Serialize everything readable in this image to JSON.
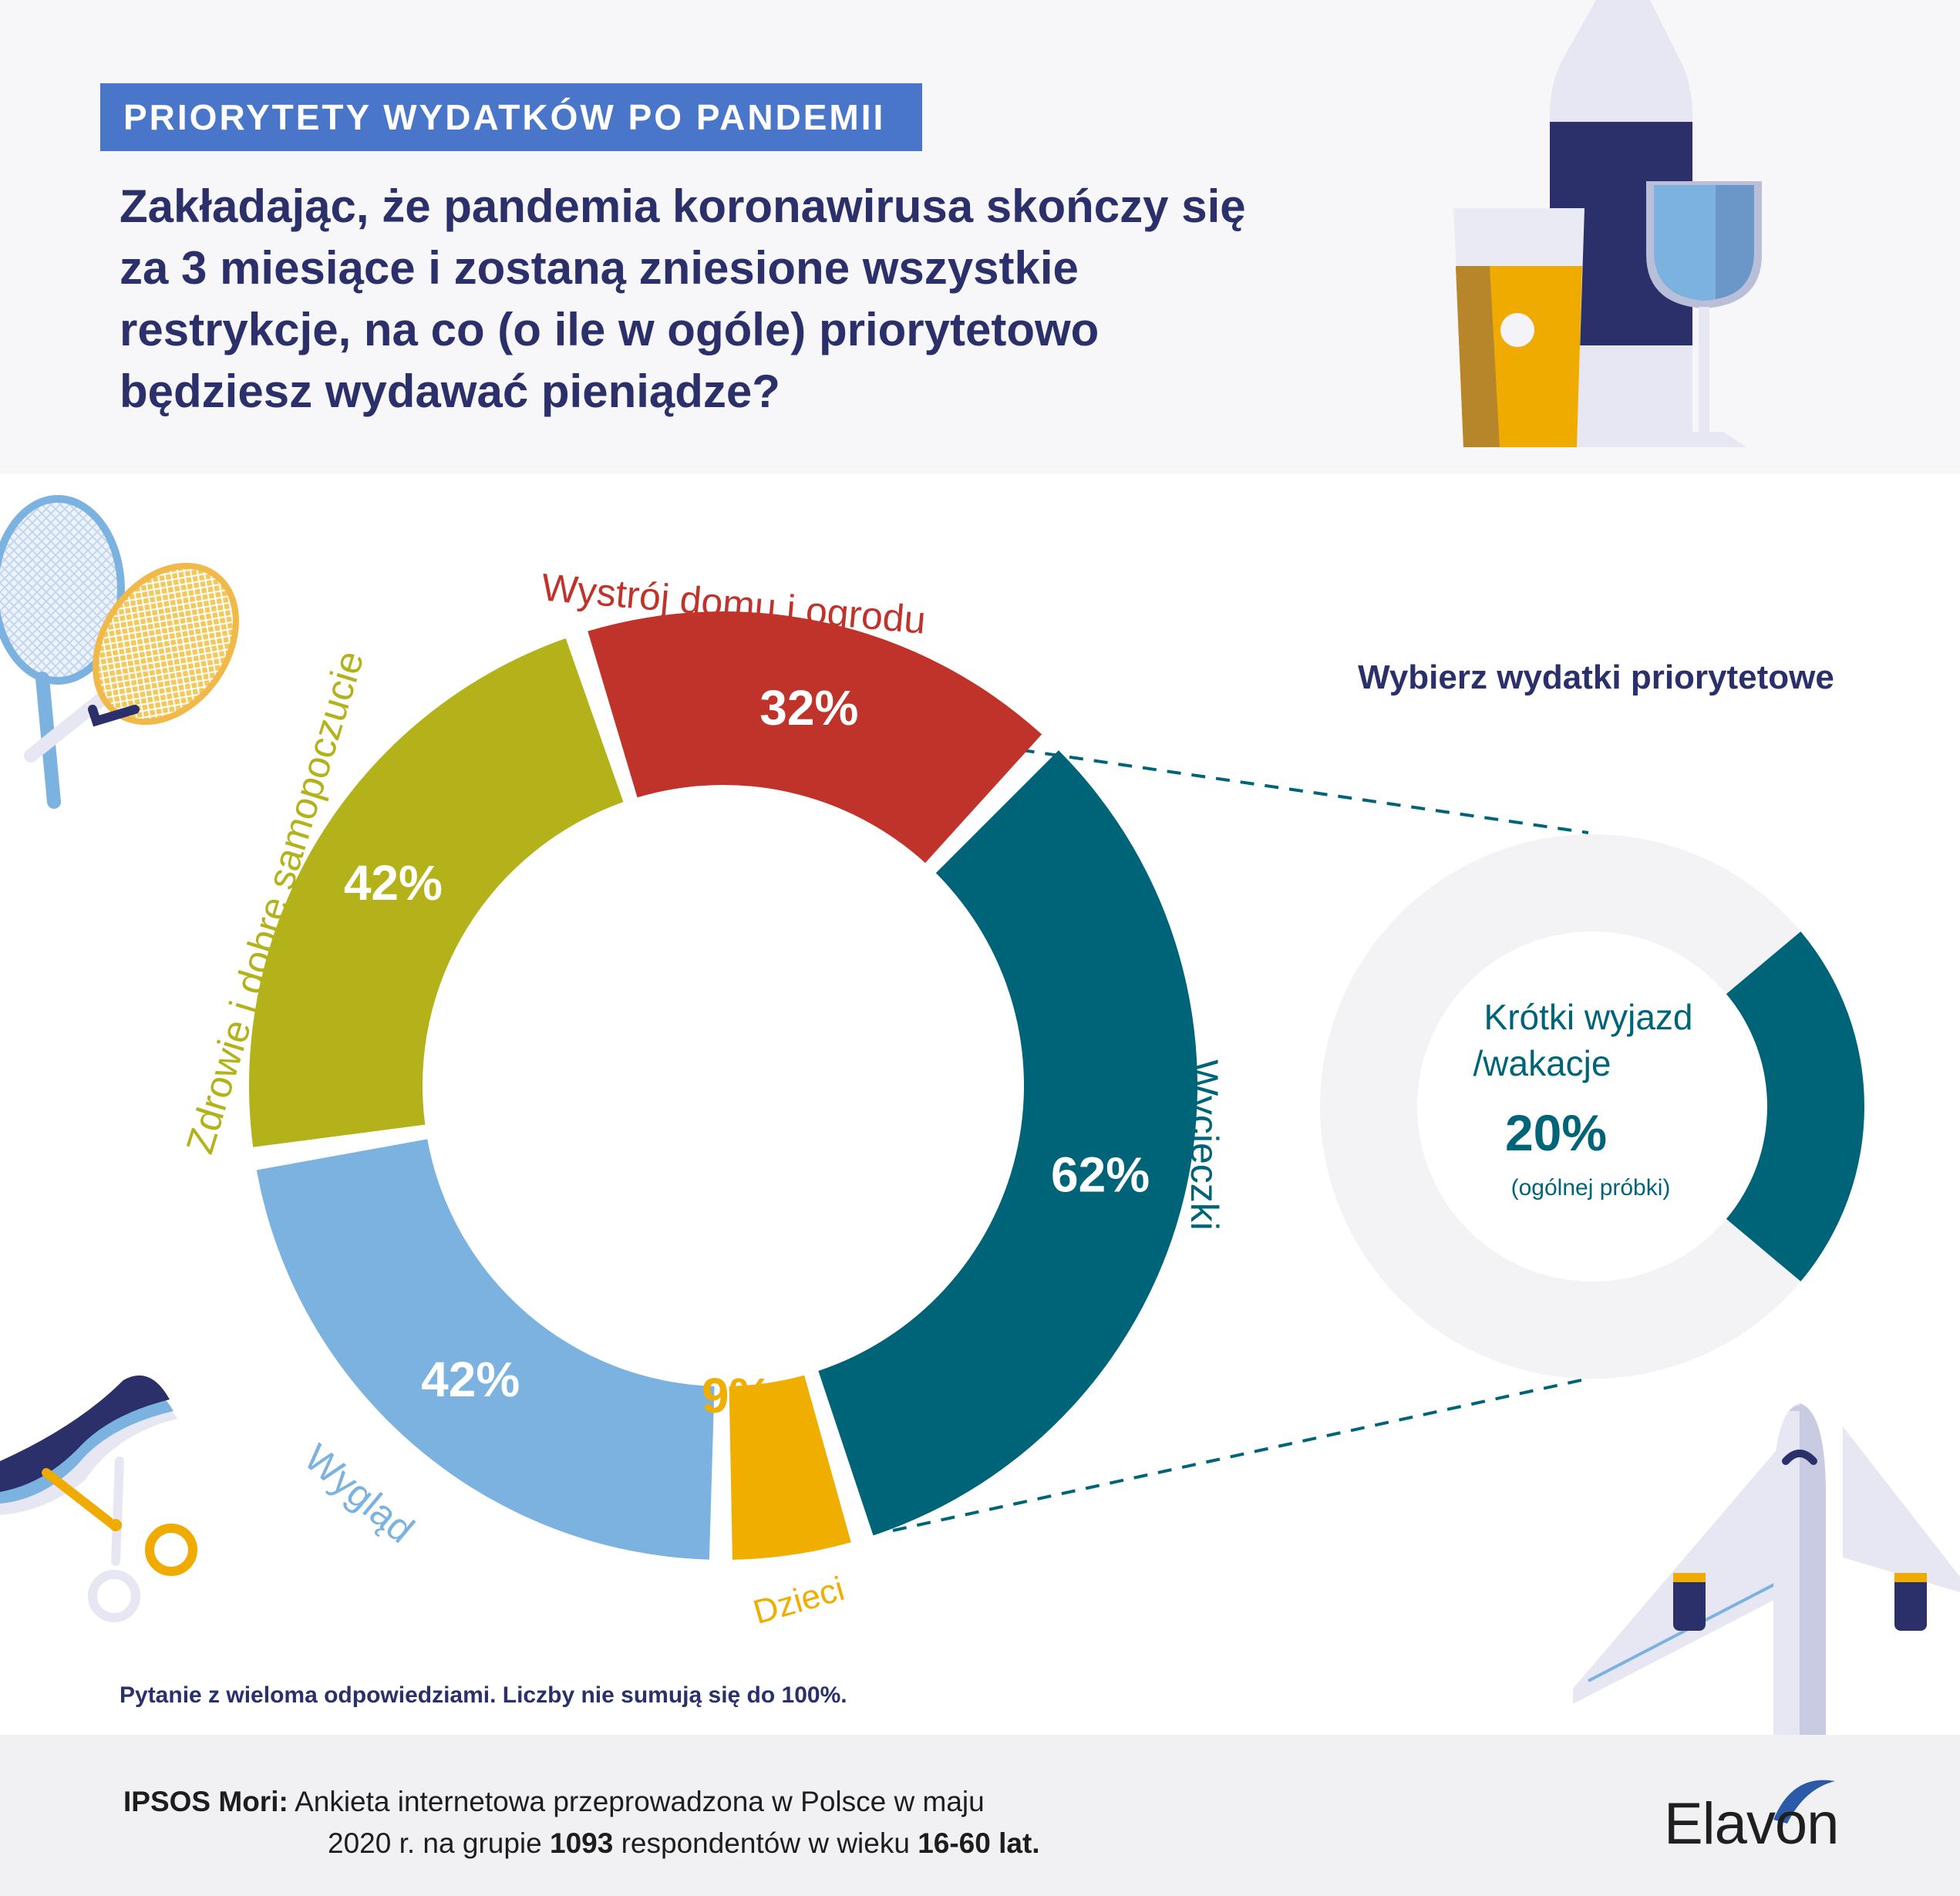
{
  "header": {
    "badge": "PRIORYTETY WYDATKÓW PO PANDEMII",
    "question": "Zakładając, że pandemia koronawirusa skończy się za 3 miesiące i zostaną zniesione wszystkie restrykcje, na co (o ile w ogóle) priorytetowo będziesz wydawać pieniądze?"
  },
  "chart_data": [
    {
      "type": "donut",
      "series": [
        {
          "label": "Wystrój domu i ogrodu",
          "value_label": "32%",
          "value": 32,
          "color": "#c0332a",
          "label_color": "#c0332a"
        },
        {
          "label": "Wycieczki",
          "value_label": "62%",
          "value": 62,
          "color": "#006479",
          "label_color": "#006479"
        },
        {
          "label": "Dzieci",
          "value_label": "9%",
          "value": 9,
          "color": "#f0ae00",
          "label_color": "#f0ae00"
        },
        {
          "label": "Wygląd",
          "value_label": "42%",
          "value": 42,
          "color": "#7bb2e0",
          "label_color": "#7bb2e0"
        },
        {
          "label": "Zdrowie i dobre samopoczucie",
          "value_label": "42%",
          "value": 42,
          "color": "#b3b21a",
          "label_color": "#b3b21a"
        }
      ]
    },
    {
      "type": "donut",
      "title": "Wybierz wydatki priorytetowe",
      "center_label_line1": "Krótki wyjazd",
      "center_label_line2": "/wakacje",
      "value_label": "20%",
      "value": 20,
      "note": "(ogólnej próbki)",
      "color": "#006479",
      "rest_color": "#f3f2f5"
    }
  ],
  "footnote": "Pytanie z wieloma odpowiedziami. Liczby nie sumują się do 100%.",
  "source": {
    "label": "IPSOS Mori:",
    "text1": "Ankieta internetowa przeprowadzona w Polsce w maju",
    "text2a": "2020 r. na grupie",
    "n": "1093",
    "text2b": "respondentów w wieku",
    "age": "16-60 lat."
  },
  "brand": {
    "name": "Elavon",
    "color": "#1f1f1f",
    "accent": "#2a5aa8"
  },
  "icons": [
    "drinks-illustration",
    "tennis-rackets-icon",
    "scissors-hair-icon",
    "airplane-icon"
  ]
}
